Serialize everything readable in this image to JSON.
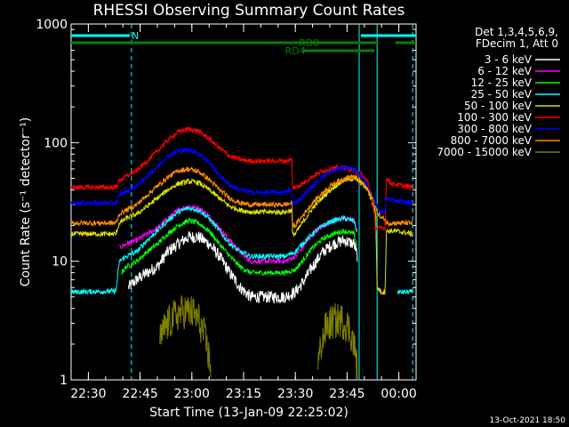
{
  "chart_data": {
    "type": "line",
    "title": "RHESSI Observing Summary Count Rates",
    "xlabel": "Start Time (13-Jan-09 22:25:02)",
    "ylabel": "Count Rate (s⁻¹ detector⁻¹)",
    "x_unit": "minutes after 22:25:02",
    "xlim": [
      0,
      100
    ],
    "ylim": [
      1,
      1000
    ],
    "y_scale": "log",
    "x_ticks": [
      {
        "t": 5,
        "label": "22:30"
      },
      {
        "t": 20,
        "label": "22:45"
      },
      {
        "t": 35,
        "label": "23:00"
      },
      {
        "t": 50,
        "label": "23:15"
      },
      {
        "t": 65,
        "label": "23:30"
      },
      {
        "t": 80,
        "label": "23:45"
      },
      {
        "t": 95,
        "label": "00:00"
      }
    ],
    "y_ticks": [
      {
        "v": 1,
        "label": "1"
      },
      {
        "v": 10,
        "label": "10"
      },
      {
        "v": 100,
        "label": "100"
      },
      {
        "v": 1000,
        "label": "1000"
      }
    ],
    "legend_header": [
      "Det 1,3,4,5,6,9,",
      "FDecim 1, Att 0"
    ],
    "series": [
      {
        "name": "3 - 6 keV",
        "color": "#ffffff",
        "points": [
          [
            16,
            null
          ],
          [
            16.5,
            6
          ],
          [
            19,
            7
          ],
          [
            22,
            8
          ],
          [
            25,
            9
          ],
          [
            28,
            12
          ],
          [
            31,
            14
          ],
          [
            34,
            16
          ],
          [
            37,
            16
          ],
          [
            40,
            14
          ],
          [
            43,
            11
          ],
          [
            46,
            8
          ],
          [
            49,
            6
          ],
          [
            52,
            5
          ],
          [
            58,
            5
          ],
          [
            62,
            5
          ],
          [
            65,
            5.5
          ],
          [
            67,
            6.5
          ],
          [
            70,
            9
          ],
          [
            73,
            12
          ],
          [
            76,
            14
          ],
          [
            79,
            15
          ],
          [
            82,
            14
          ],
          [
            83,
            11
          ],
          [
            83.5,
            null
          ]
        ]
      },
      {
        "name": "6 - 12 keV",
        "color": "#ff00ff",
        "points": [
          [
            0,
            null
          ],
          [
            13.5,
            null
          ],
          [
            14,
            13
          ],
          [
            16,
            14
          ],
          [
            19,
            15
          ],
          [
            22,
            17
          ],
          [
            25,
            19
          ],
          [
            28,
            23
          ],
          [
            31,
            27
          ],
          [
            34,
            29
          ],
          [
            37,
            28
          ],
          [
            40,
            24
          ],
          [
            43,
            19
          ],
          [
            46,
            15
          ],
          [
            49,
            12
          ],
          [
            52,
            10
          ],
          [
            58,
            10
          ],
          [
            62,
            10
          ],
          [
            65,
            11
          ],
          [
            67,
            13
          ],
          [
            70,
            17
          ],
          [
            73,
            20
          ],
          [
            76,
            22
          ],
          [
            79,
            23
          ],
          [
            82,
            22
          ],
          [
            83,
            17
          ],
          [
            83.5,
            null
          ]
        ]
      },
      {
        "name": "12 - 25 keV",
        "color": "#00ff00",
        "points": [
          [
            0,
            null
          ],
          [
            14,
            null
          ],
          [
            14.5,
            8
          ],
          [
            16,
            9
          ],
          [
            19,
            10
          ],
          [
            22,
            12
          ],
          [
            25,
            14
          ],
          [
            28,
            17
          ],
          [
            31,
            20
          ],
          [
            34,
            22
          ],
          [
            37,
            21
          ],
          [
            40,
            18
          ],
          [
            43,
            14
          ],
          [
            46,
            11
          ],
          [
            49,
            9
          ],
          [
            52,
            8
          ],
          [
            58,
            8
          ],
          [
            62,
            8
          ],
          [
            65,
            8.5
          ],
          [
            67,
            10
          ],
          [
            70,
            13
          ],
          [
            73,
            15.5
          ],
          [
            76,
            17
          ],
          [
            79,
            18
          ],
          [
            82,
            17
          ],
          [
            83,
            13
          ],
          [
            83.5,
            null
          ]
        ]
      },
      {
        "name": "25 - 50 keV",
        "color": "#00ffff",
        "points": [
          [
            0,
            5.5
          ],
          [
            13,
            5.6
          ],
          [
            14,
            10
          ],
          [
            16,
            11
          ],
          [
            19,
            12
          ],
          [
            22,
            15
          ],
          [
            25,
            18
          ],
          [
            28,
            22
          ],
          [
            31,
            26
          ],
          [
            34,
            28
          ],
          [
            37,
            27
          ],
          [
            40,
            23
          ],
          [
            43,
            18
          ],
          [
            46,
            14
          ],
          [
            49,
            12
          ],
          [
            52,
            11
          ],
          [
            58,
            11
          ],
          [
            62,
            11
          ],
          [
            65,
            12
          ],
          [
            67,
            14
          ],
          [
            70,
            17
          ],
          [
            73,
            20
          ],
          [
            76,
            22
          ],
          [
            79,
            23
          ],
          [
            82,
            22
          ],
          [
            83,
            17
          ],
          [
            83.5,
            null
          ],
          [
            94,
            null
          ],
          [
            94.5,
            5.5
          ],
          [
            99,
            5.5
          ]
        ]
      },
      {
        "name": "50 - 100 keV",
        "color": "#e0e000",
        "points": [
          [
            0,
            17
          ],
          [
            13,
            17
          ],
          [
            14,
            21
          ],
          [
            16,
            23
          ],
          [
            19,
            25
          ],
          [
            22,
            29
          ],
          [
            25,
            34
          ],
          [
            28,
            40
          ],
          [
            31,
            45
          ],
          [
            34,
            47
          ],
          [
            37,
            46
          ],
          [
            40,
            40
          ],
          [
            43,
            34
          ],
          [
            46,
            29
          ],
          [
            49,
            27
          ],
          [
            52,
            26
          ],
          [
            58,
            26
          ],
          [
            62,
            26
          ],
          [
            64,
            27
          ],
          [
            64.2,
            17
          ],
          [
            65,
            17
          ],
          [
            67,
            21
          ],
          [
            70,
            28
          ],
          [
            73,
            35
          ],
          [
            76,
            42
          ],
          [
            79,
            48
          ],
          [
            82,
            50
          ],
          [
            84,
            46
          ],
          [
            86,
            40
          ],
          [
            87.5,
            30
          ],
          [
            88.3,
            26
          ],
          [
            88.7,
            6
          ],
          [
            90,
            5.5
          ],
          [
            91,
            5.5
          ],
          [
            91.4,
            18
          ],
          [
            94,
            18
          ],
          [
            99,
            17
          ]
        ]
      },
      {
        "name": "100 - 300 keV",
        "color": "#ff0000",
        "points": [
          [
            0,
            42
          ],
          [
            13,
            42
          ],
          [
            14,
            48
          ],
          [
            16,
            52
          ],
          [
            19,
            58
          ],
          [
            22,
            70
          ],
          [
            25,
            85
          ],
          [
            28,
            105
          ],
          [
            31,
            123
          ],
          [
            34,
            130
          ],
          [
            37,
            125
          ],
          [
            40,
            108
          ],
          [
            43,
            90
          ],
          [
            46,
            77
          ],
          [
            49,
            72
          ],
          [
            52,
            70
          ],
          [
            58,
            70
          ],
          [
            62,
            70
          ],
          [
            64,
            72
          ],
          [
            64.2,
            42
          ],
          [
            65,
            42
          ],
          [
            67,
            45
          ],
          [
            70,
            52
          ],
          [
            73,
            58
          ],
          [
            76,
            61
          ],
          [
            79,
            62
          ],
          [
            82,
            58
          ],
          [
            84,
            54
          ],
          [
            86,
            47
          ],
          [
            87.5,
            30
          ],
          [
            88.3,
            19
          ],
          [
            89,
            19
          ],
          [
            89.5,
            19
          ],
          [
            90,
            19
          ],
          [
            91,
            19
          ],
          [
            91.4,
            50
          ],
          [
            93,
            45
          ],
          [
            99,
            42
          ]
        ]
      },
      {
        "name": "300 - 800 keV",
        "color": "#0000ff",
        "points": [
          [
            0,
            31
          ],
          [
            13,
            31
          ],
          [
            14,
            36
          ],
          [
            16,
            39
          ],
          [
            19,
            43
          ],
          [
            22,
            52
          ],
          [
            25,
            63
          ],
          [
            28,
            77
          ],
          [
            31,
            85
          ],
          [
            34,
            87
          ],
          [
            37,
            82
          ],
          [
            40,
            68
          ],
          [
            43,
            53
          ],
          [
            46,
            44
          ],
          [
            49,
            40
          ],
          [
            52,
            38
          ],
          [
            58,
            38
          ],
          [
            62,
            38
          ],
          [
            64,
            40
          ],
          [
            64.2,
            31
          ],
          [
            65,
            31
          ],
          [
            67,
            35
          ],
          [
            70,
            43
          ],
          [
            73,
            52
          ],
          [
            76,
            58
          ],
          [
            79,
            62
          ],
          [
            82,
            60
          ],
          [
            84,
            52
          ],
          [
            86,
            43
          ],
          [
            87.5,
            36
          ],
          [
            88.5,
            30
          ],
          [
            89.5,
            26
          ],
          [
            90,
            26
          ],
          [
            91,
            26
          ],
          [
            91.4,
            34
          ],
          [
            94,
            32
          ],
          [
            99,
            31
          ]
        ]
      },
      {
        "name": "800 - 7000 keV",
        "color": "#ff8c00",
        "points": [
          [
            0,
            21
          ],
          [
            13,
            21
          ],
          [
            14,
            25
          ],
          [
            16,
            27
          ],
          [
            19,
            30
          ],
          [
            22,
            36
          ],
          [
            25,
            43
          ],
          [
            28,
            51
          ],
          [
            31,
            58
          ],
          [
            34,
            60
          ],
          [
            37,
            57
          ],
          [
            40,
            49
          ],
          [
            43,
            40
          ],
          [
            46,
            34
          ],
          [
            49,
            31
          ],
          [
            52,
            30
          ],
          [
            58,
            30
          ],
          [
            62,
            30
          ],
          [
            64,
            31
          ],
          [
            64.2,
            20
          ],
          [
            65,
            20
          ],
          [
            67,
            24
          ],
          [
            70,
            31
          ],
          [
            73,
            38
          ],
          [
            76,
            45
          ],
          [
            79,
            50
          ],
          [
            82,
            52
          ],
          [
            84,
            47
          ],
          [
            86,
            40
          ],
          [
            87.5,
            33
          ],
          [
            88.5,
            27
          ],
          [
            89.5,
            24
          ],
          [
            90,
            23
          ],
          [
            91,
            23
          ],
          [
            91.4,
            21
          ],
          [
            94,
            21
          ],
          [
            99,
            21
          ]
        ]
      },
      {
        "name": "7000 - 15000 keV",
        "color": "#808000",
        "points": [
          [
            25,
            null
          ],
          [
            25.5,
            2
          ],
          [
            27,
            2.7
          ],
          [
            29,
            3.2
          ],
          [
            31,
            3.6
          ],
          [
            33,
            3.8
          ],
          [
            35,
            3.7
          ],
          [
            37,
            3.2
          ],
          [
            38.5,
            2.4
          ],
          [
            39.5,
            1.8
          ],
          [
            40.5,
            1.3
          ],
          [
            41,
            null
          ],
          [
            71,
            null
          ],
          [
            71.5,
            1.3
          ],
          [
            72.5,
            2
          ],
          [
            74,
            2.8
          ],
          [
            76,
            3.1
          ],
          [
            78,
            3.2
          ],
          [
            80,
            2.9
          ],
          [
            81.5,
            2.3
          ],
          [
            82.5,
            1.6
          ],
          [
            83,
            1.2
          ],
          [
            83.5,
            null
          ]
        ]
      }
    ],
    "flags": [
      {
        "name": "N",
        "color": "#00ffff",
        "row": "top",
        "segments": [
          [
            0,
            17
          ],
          [
            84,
            100
          ]
        ]
      },
      {
        "name": "RD0",
        "color": "#008000",
        "row": "top",
        "segments": [
          [
            0,
            89
          ],
          [
            94,
            100
          ]
        ]
      },
      {
        "name": "RD4",
        "color": "#008000",
        "row": "second",
        "segments": [
          [
            67,
            88
          ]
        ]
      }
    ],
    "vertical_markers": [
      {
        "t": 17.5,
        "color": "#00ffff",
        "style": "dashed"
      },
      {
        "t": 83.5,
        "color": "#00ffff",
        "style": "solid"
      },
      {
        "t": 88.7,
        "color": "#00ffff",
        "style": "solid"
      },
      {
        "t": 99,
        "color": "#00ffff",
        "style": "dashed"
      }
    ],
    "footer": "13-Oct-2021 18:50"
  }
}
